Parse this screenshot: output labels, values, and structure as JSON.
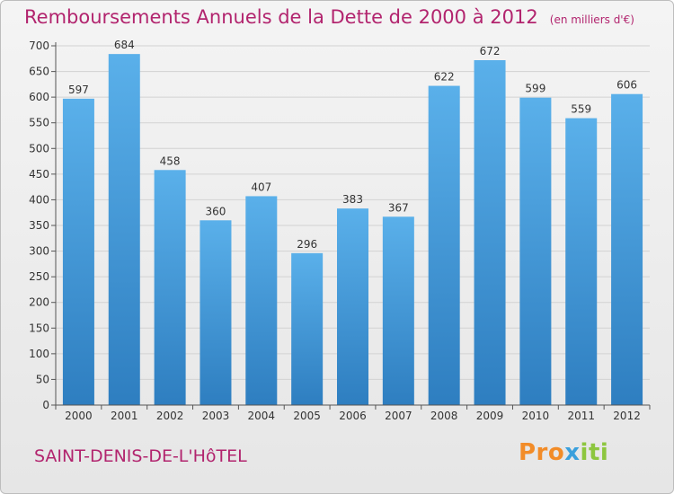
{
  "header": {
    "title": "Remboursements Annuels de la Dette de 2000 à 2012",
    "unit": "(en milliers d'€)"
  },
  "footer": {
    "city": "SAINT-DENIS-DE-L'HôTEL",
    "logo_parts": [
      "Pro",
      "x",
      "iti"
    ]
  },
  "colors": {
    "title": "#b2246e",
    "bar_top": "#5ab0ea",
    "bar_bottom": "#2e7ec0",
    "logo_orange": "#f28c28",
    "logo_blue": "#3aa0dc",
    "logo_green": "#8dc63f"
  },
  "chart_data": {
    "type": "bar",
    "categories": [
      "2000",
      "2001",
      "2002",
      "2003",
      "2004",
      "2005",
      "2006",
      "2007",
      "2008",
      "2009",
      "2010",
      "2011",
      "2012"
    ],
    "values": [
      597,
      684,
      458,
      360,
      407,
      296,
      383,
      367,
      622,
      672,
      599,
      559,
      606
    ],
    "ylim": [
      0,
      700
    ],
    "yticks": [
      0,
      50,
      100,
      150,
      200,
      250,
      300,
      350,
      400,
      450,
      500,
      550,
      600,
      650,
      700
    ],
    "grid": true,
    "data_labels": true
  }
}
